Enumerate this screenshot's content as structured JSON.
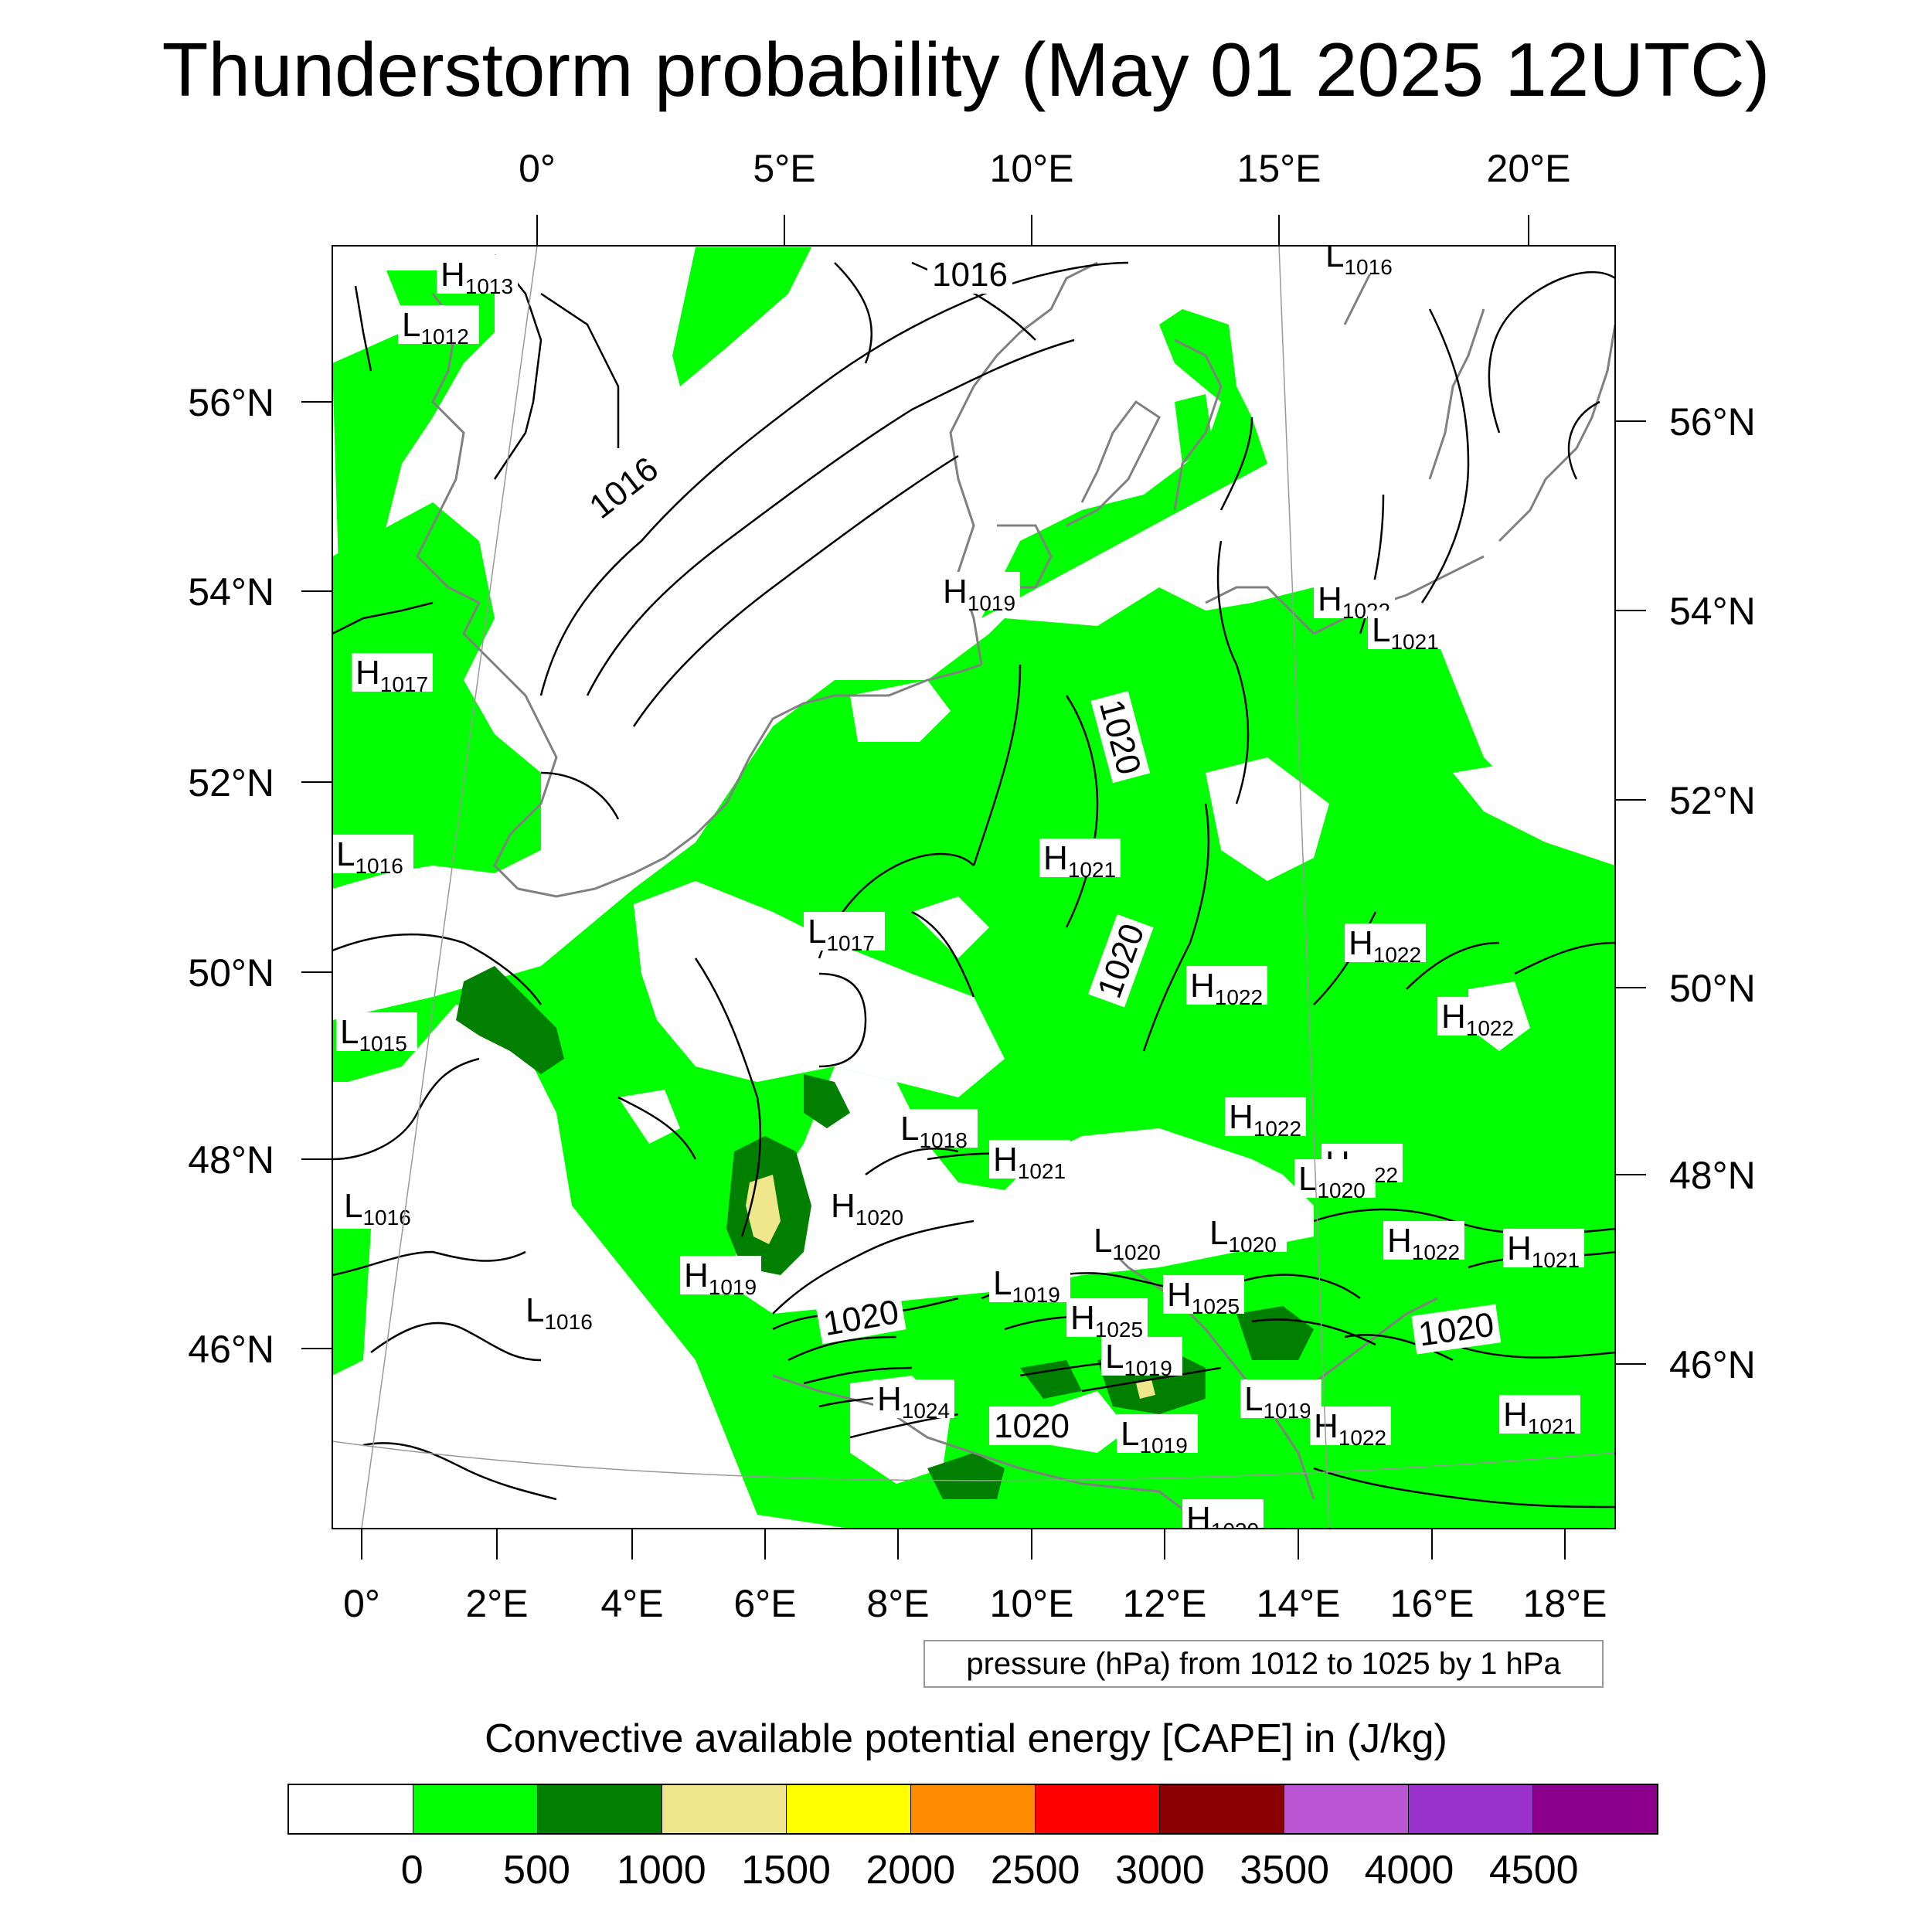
{
  "title": "Thunderstorm probability (May 01 2025 12UTC)",
  "top_axis_labels": [
    "0°",
    "5°E",
    "10°E",
    "15°E",
    "20°E"
  ],
  "bottom_axis_labels": [
    "0°",
    "2°E",
    "4°E",
    "6°E",
    "8°E",
    "10°E",
    "12°E",
    "14°E",
    "16°E",
    "18°E"
  ],
  "left_axis_labels": [
    "56°N",
    "54°N",
    "52°N",
    "50°N",
    "48°N",
    "46°N"
  ],
  "right_axis_labels": [
    "56°N",
    "54°N",
    "52°N",
    "50°N",
    "48°N",
    "46°N"
  ],
  "pressure_note": "pressure (hPa) from 1012 to 1025 by 1 hPa",
  "cape_title": "Convective available potential energy [CAPE] in (J/kg)",
  "colorbar": {
    "colors": [
      "#ffffff",
      "#00ff00",
      "#007f00",
      "#f0e68c",
      "#ffff00",
      "#ff8c00",
      "#ff0000",
      "#8b0000",
      "#ba55d3",
      "#9932cc",
      "#8b008b"
    ],
    "tick_labels": [
      "0",
      "500",
      "1000",
      "1500",
      "2000",
      "2500",
      "3000",
      "3500",
      "4000",
      "4500"
    ]
  },
  "pressure_centers": [
    {
      "type": "H",
      "value": "1013"
    },
    {
      "type": "L",
      "value": "1012"
    },
    {
      "type": "H",
      "value": "1017"
    },
    {
      "type": "L",
      "value": "1016"
    },
    {
      "type": "L",
      "value": "1015"
    },
    {
      "type": "L",
      "value": "1016"
    },
    {
      "type": "L",
      "value": "1016"
    },
    {
      "type": "H",
      "value": "1019"
    },
    {
      "type": "H",
      "value": "1020"
    },
    {
      "type": "L",
      "value": "1017"
    },
    {
      "type": "L",
      "value": "1018"
    },
    {
      "type": "H",
      "value": "1021"
    },
    {
      "type": "H",
      "value": "1019"
    },
    {
      "type": "H",
      "value": "1021"
    },
    {
      "type": "H",
      "value": "1022"
    },
    {
      "type": "H",
      "value": "1022"
    },
    {
      "type": "H",
      "value": "1022"
    },
    {
      "type": "H",
      "value": "1022"
    },
    {
      "type": "L",
      "value": "1020"
    },
    {
      "type": "H",
      "value": "1022"
    },
    {
      "type": "L",
      "value": "1020"
    },
    {
      "type": "L",
      "value": "1020"
    },
    {
      "type": "L",
      "value": "1019"
    },
    {
      "type": "H",
      "value": "1025"
    },
    {
      "type": "H",
      "value": "1025"
    },
    {
      "type": "L",
      "value": "1019"
    },
    {
      "type": "H",
      "value": "1024"
    },
    {
      "type": "L",
      "value": "1019"
    },
    {
      "type": "L",
      "value": "1019"
    },
    {
      "type": "H",
      "value": "1022"
    },
    {
      "type": "H",
      "value": "1022"
    },
    {
      "type": "H",
      "value": "1021"
    },
    {
      "type": "H",
      "value": "1021"
    },
    {
      "type": "L",
      "value": "1016"
    },
    {
      "type": "H",
      "value": "1022"
    },
    {
      "type": "L",
      "value": "1021"
    },
    {
      "type": "H",
      "value": "1020"
    }
  ],
  "isobar_labels": [
    "1016",
    "1016",
    "1020",
    "1020",
    "1020",
    "1020",
    "1020"
  ]
}
